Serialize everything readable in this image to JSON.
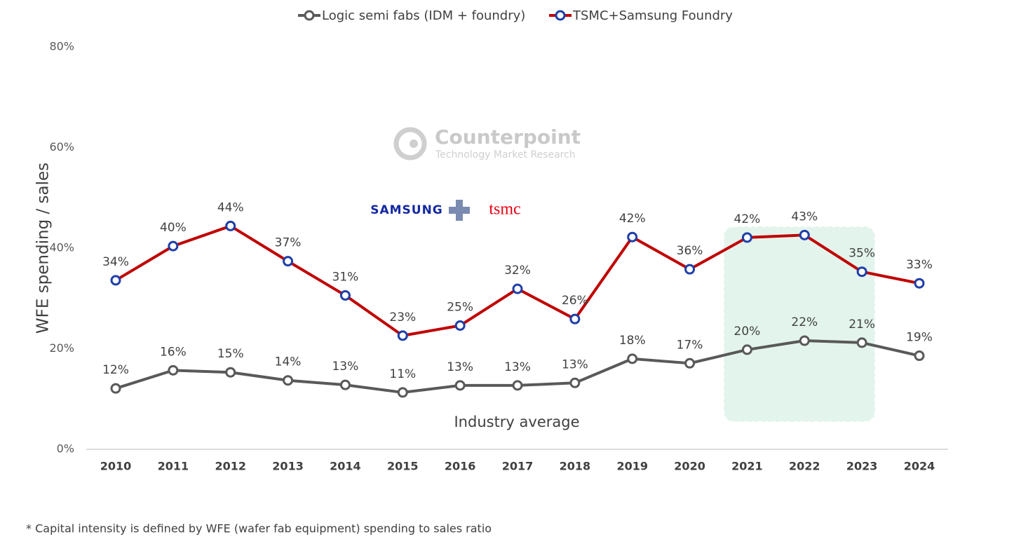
{
  "chart_data": {
    "type": "line",
    "ylabel": "WFE spending / sales",
    "footnote": "* Capital intensity is defined by WFE (wafer fab equipment) spending to sales ratio",
    "annotation": "Industry average",
    "watermark": {
      "name": "Counterpoint",
      "tagline": "Technology Market Research"
    },
    "logos": {
      "left": "SAMSUNG",
      "right": "tsmc"
    },
    "categories": [
      "2010",
      "2011",
      "2012",
      "2013",
      "2014",
      "2015",
      "2016",
      "2017",
      "2018",
      "2019",
      "2020",
      "2021",
      "2022",
      "2023",
      "2024"
    ],
    "series": [
      {
        "name": "Logic semi fabs (IDM + foundry)",
        "color": "#595959",
        "marker_color": "#595959",
        "values": [
          12.1,
          15.7,
          15.3,
          13.7,
          12.8,
          11.3,
          12.7,
          12.7,
          13.2,
          18.0,
          17.1,
          19.8,
          21.6,
          21.2,
          18.6
        ],
        "value_labels": [
          "12%",
          "16%",
          "15%",
          "14%",
          "13%",
          "11%",
          "13%",
          "13%",
          "13%",
          "18%",
          "17%",
          "20%",
          "22%",
          "21%",
          "19%"
        ]
      },
      {
        "name": "TSMC+Samsung Foundry",
        "color": "#c00000",
        "marker_color": "#1f3fa8",
        "values": [
          33.6,
          40.4,
          44.4,
          37.4,
          30.6,
          22.6,
          24.6,
          31.9,
          25.9,
          42.2,
          35.8,
          42.1,
          42.6,
          35.3,
          33.0
        ],
        "value_labels": [
          "34%",
          "40%",
          "44%",
          "37%",
          "31%",
          "23%",
          "25%",
          "32%",
          "26%",
          "42%",
          "36%",
          "42%",
          "43%",
          "35%",
          "33%"
        ]
      }
    ],
    "ylim": [
      0,
      80
    ],
    "yticks": [
      {
        "value": 0,
        "label": "0%"
      },
      {
        "value": 20,
        "label": "20%"
      },
      {
        "value": 40,
        "label": "40%"
      },
      {
        "value": 60,
        "label": "60%"
      },
      {
        "value": 80,
        "label": "80%"
      }
    ],
    "grid": false
  }
}
